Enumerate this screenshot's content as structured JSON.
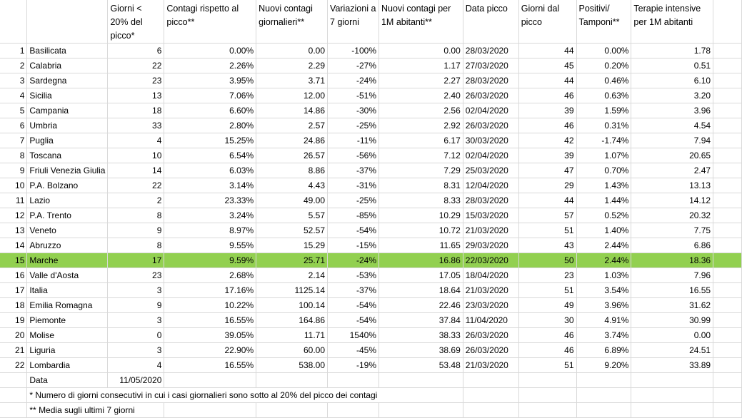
{
  "headers": [
    "",
    "",
    "Giorni < 20% del picco*",
    "Contagi rispetto al picco**",
    "Nuovi contagi giornalieri**",
    "Variazioni a 7 giorni",
    "Nuovi contagi per 1M abitanti**",
    "Data picco",
    "Giorni dal picco",
    "Positivi/ Tamponi**",
    "Terapie intensive per 1M abitanti"
  ],
  "rows": [
    {
      "n": "1",
      "name": "Basilicata",
      "giorni": "6",
      "contagi": "0.00%",
      "nuovi": "0.00",
      "var": "-100%",
      "per1m": "0.00",
      "data": "28/03/2020",
      "dal": "44",
      "pos": "0.00%",
      "ti": "1.78"
    },
    {
      "n": "2",
      "name": "Calabria",
      "giorni": "22",
      "contagi": "2.26%",
      "nuovi": "2.29",
      "var": "-27%",
      "per1m": "1.17",
      "data": "27/03/2020",
      "dal": "45",
      "pos": "0.20%",
      "ti": "0.51"
    },
    {
      "n": "3",
      "name": "Sardegna",
      "giorni": "23",
      "contagi": "3.95%",
      "nuovi": "3.71",
      "var": "-24%",
      "per1m": "2.27",
      "data": "28/03/2020",
      "dal": "44",
      "pos": "0.46%",
      "ti": "6.10"
    },
    {
      "n": "4",
      "name": "Sicilia",
      "giorni": "13",
      "contagi": "7.06%",
      "nuovi": "12.00",
      "var": "-51%",
      "per1m": "2.40",
      "data": "26/03/2020",
      "dal": "46",
      "pos": "0.63%",
      "ti": "3.20"
    },
    {
      "n": "5",
      "name": "Campania",
      "giorni": "18",
      "contagi": "6.60%",
      "nuovi": "14.86",
      "var": "-30%",
      "per1m": "2.56",
      "data": "02/04/2020",
      "dal": "39",
      "pos": "1.59%",
      "ti": "3.96"
    },
    {
      "n": "6",
      "name": "Umbria",
      "giorni": "33",
      "contagi": "2.80%",
      "nuovi": "2.57",
      "var": "-25%",
      "per1m": "2.92",
      "data": "26/03/2020",
      "dal": "46",
      "pos": "0.31%",
      "ti": "4.54"
    },
    {
      "n": "7",
      "name": "Puglia",
      "giorni": "4",
      "contagi": "15.25%",
      "nuovi": "24.86",
      "var": "-11%",
      "per1m": "6.17",
      "data": "30/03/2020",
      "dal": "42",
      "pos": "-1.74%",
      "ti": "7.94"
    },
    {
      "n": "8",
      "name": "Toscana",
      "giorni": "10",
      "contagi": "6.54%",
      "nuovi": "26.57",
      "var": "-56%",
      "per1m": "7.12",
      "data": "02/04/2020",
      "dal": "39",
      "pos": "1.07%",
      "ti": "20.65"
    },
    {
      "n": "9",
      "name": "Friuli Venezia Giulia",
      "giorni": "14",
      "contagi": "6.03%",
      "nuovi": "8.86",
      "var": "-37%",
      "per1m": "7.29",
      "data": "25/03/2020",
      "dal": "47",
      "pos": "0.70%",
      "ti": "2.47"
    },
    {
      "n": "10",
      "name": "P.A. Bolzano",
      "giorni": "22",
      "contagi": "3.14%",
      "nuovi": "4.43",
      "var": "-31%",
      "per1m": "8.31",
      "data": "12/04/2020",
      "dal": "29",
      "pos": "1.43%",
      "ti": "13.13"
    },
    {
      "n": "11",
      "name": "Lazio",
      "giorni": "2",
      "contagi": "23.33%",
      "nuovi": "49.00",
      "var": "-25%",
      "per1m": "8.33",
      "data": "28/03/2020",
      "dal": "44",
      "pos": "1.44%",
      "ti": "14.12"
    },
    {
      "n": "12",
      "name": "P.A. Trento",
      "giorni": "8",
      "contagi": "3.24%",
      "nuovi": "5.57",
      "var": "-85%",
      "per1m": "10.29",
      "data": "15/03/2020",
      "dal": "57",
      "pos": "0.52%",
      "ti": "20.32"
    },
    {
      "n": "13",
      "name": "Veneto",
      "giorni": "9",
      "contagi": "8.97%",
      "nuovi": "52.57",
      "var": "-54%",
      "per1m": "10.72",
      "data": "21/03/2020",
      "dal": "51",
      "pos": "1.40%",
      "ti": "7.75"
    },
    {
      "n": "14",
      "name": "Abruzzo",
      "giorni": "8",
      "contagi": "9.55%",
      "nuovi": "15.29",
      "var": "-15%",
      "per1m": "11.65",
      "data": "29/03/2020",
      "dal": "43",
      "pos": "2.44%",
      "ti": "6.86"
    },
    {
      "n": "15",
      "name": "Marche",
      "giorni": "17",
      "contagi": "9.59%",
      "nuovi": "25.71",
      "var": "-24%",
      "per1m": "16.86",
      "data": "22/03/2020",
      "dal": "50",
      "pos": "2.44%",
      "ti": "18.36",
      "highlight": true
    },
    {
      "n": "16",
      "name": "Valle d'Aosta",
      "giorni": "23",
      "contagi": "2.68%",
      "nuovi": "2.14",
      "var": "-53%",
      "per1m": "17.05",
      "data": "18/04/2020",
      "dal": "23",
      "pos": "1.03%",
      "ti": "7.96"
    },
    {
      "n": "17",
      "name": "Italia",
      "giorni": "3",
      "contagi": "17.16%",
      "nuovi": "1125.14",
      "var": "-37%",
      "per1m": "18.64",
      "data": "21/03/2020",
      "dal": "51",
      "pos": "3.54%",
      "ti": "16.55"
    },
    {
      "n": "18",
      "name": "Emilia Romagna",
      "giorni": "9",
      "contagi": "10.22%",
      "nuovi": "100.14",
      "var": "-54%",
      "per1m": "22.46",
      "data": "23/03/2020",
      "dal": "49",
      "pos": "3.96%",
      "ti": "31.62"
    },
    {
      "n": "19",
      "name": "Piemonte",
      "giorni": "3",
      "contagi": "16.55%",
      "nuovi": "164.86",
      "var": "-54%",
      "per1m": "37.84",
      "data": "11/04/2020",
      "dal": "30",
      "pos": "4.91%",
      "ti": "30.99"
    },
    {
      "n": "20",
      "name": "Molise",
      "giorni": "0",
      "contagi": "39.05%",
      "nuovi": "11.71",
      "var": "1540%",
      "per1m": "38.33",
      "data": "26/03/2020",
      "dal": "46",
      "pos": "3.74%",
      "ti": "0.00"
    },
    {
      "n": "21",
      "name": "Liguria",
      "giorni": "3",
      "contagi": "22.90%",
      "nuovi": "60.00",
      "var": "-45%",
      "per1m": "38.69",
      "data": "26/03/2020",
      "dal": "46",
      "pos": "6.89%",
      "ti": "24.51"
    },
    {
      "n": "22",
      "name": "Lombardia",
      "giorni": "4",
      "contagi": "16.55%",
      "nuovi": "538.00",
      "var": "-19%",
      "per1m": "53.48",
      "data": "21/03/2020",
      "dal": "51",
      "pos": "9.20%",
      "ti": "33.89"
    }
  ],
  "footer": {
    "data_label": "Data",
    "data_value": "11/05/2020",
    "note1": "* Numero di giorni consecutivi in cui i casi giornalieri sono sotto al 20% del picco dei contagi",
    "note2": "** Media sugli ultimi 7 giorni"
  },
  "colors": {
    "highlight": "#92d050",
    "grid": "#d9d9d9"
  }
}
